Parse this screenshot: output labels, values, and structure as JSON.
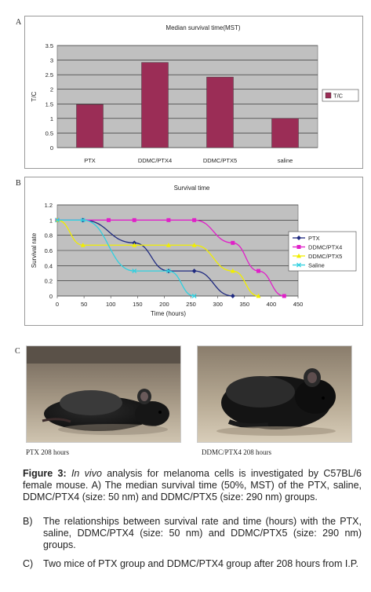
{
  "panels": {
    "a": "A",
    "b": "B",
    "c": "C"
  },
  "chart_data": [
    {
      "type": "bar",
      "title": "Median survival time(MST)",
      "ylabel": "T/C",
      "xlabel": "",
      "categories": [
        "PTX",
        "DDMC/PTX4",
        "DDMC/PTX5",
        "saline"
      ],
      "series": [
        {
          "name": "T/C",
          "values": [
            1.48,
            2.92,
            2.42,
            1.0
          ]
        }
      ],
      "ylim": [
        0,
        3.5
      ],
      "yticks": [
        "0",
        "0.5",
        "1",
        "1.5",
        "2",
        "2.5",
        "3",
        "3.5"
      ],
      "legend": "right",
      "grid": true,
      "colors": {
        "bar": "#9b2d56",
        "plot_bg": "#c0c0c0"
      }
    },
    {
      "type": "line",
      "title": "Survival time",
      "xlabel": "Time (hours)",
      "ylabel": "Survival rate",
      "xlim": [
        0,
        450
      ],
      "ylim": [
        0,
        1.2
      ],
      "xticks": [
        "0",
        "50",
        "100",
        "150",
        "200",
        "250",
        "300",
        "350",
        "400",
        "450"
      ],
      "yticks": [
        "0",
        "0.2",
        "0.4",
        "0.6",
        "0.8",
        "1",
        "1.2"
      ],
      "legend": "right",
      "grid": true,
      "series": [
        {
          "name": "PTX",
          "color": "#1f2a80",
          "marker": "diamond",
          "x": [
            0,
            48,
            144,
            208,
            256,
            328
          ],
          "y": [
            1,
            1,
            0.7,
            0.33,
            0.33,
            0
          ]
        },
        {
          "name": "DDMC/PTX4",
          "color": "#e020c8",
          "marker": "square",
          "x": [
            0,
            96,
            144,
            208,
            256,
            328,
            376,
            424
          ],
          "y": [
            1,
            1,
            1,
            1,
            1,
            0.7,
            0.33,
            0
          ]
        },
        {
          "name": "DDMC/PTX5",
          "color": "#f0ee00",
          "marker": "triangle",
          "x": [
            0,
            48,
            144,
            208,
            256,
            328,
            376
          ],
          "y": [
            1,
            0.67,
            0.67,
            0.67,
            0.67,
            0.33,
            0
          ]
        },
        {
          "name": "Saline",
          "color": "#30d0e0",
          "marker": "x",
          "x": [
            0,
            48,
            144,
            208,
            256
          ],
          "y": [
            1,
            1,
            0.33,
            0.33,
            0
          ]
        }
      ]
    }
  ],
  "photos": [
    {
      "label": "PTX 208 hours"
    },
    {
      "label": "DDMC/PTX4 208 hours"
    }
  ],
  "caption": {
    "prefix": "Figure 3:",
    "italic": "In vivo",
    "text": " analysis for melanoma cells is investigated by C57BL/6 female mouse. A) The median survival time (50%, MST) of the PTX, saline, DDMC/PTX4 (size: 50 nm) and DDMC/PTX5 (size: 290 nm) groups.",
    "items": [
      {
        "letter": "B)",
        "text": "The relationships between survival rate and time (hours) with the PTX, saline, DDMC/PTX4 (size: 50 nm) and DDMC/PTX5 (size: 290 nm) groups."
      },
      {
        "letter": "C)",
        "text": "Two mice of PTX group and DDMC/PTX4 group after 208 hours from I.P."
      }
    ]
  }
}
